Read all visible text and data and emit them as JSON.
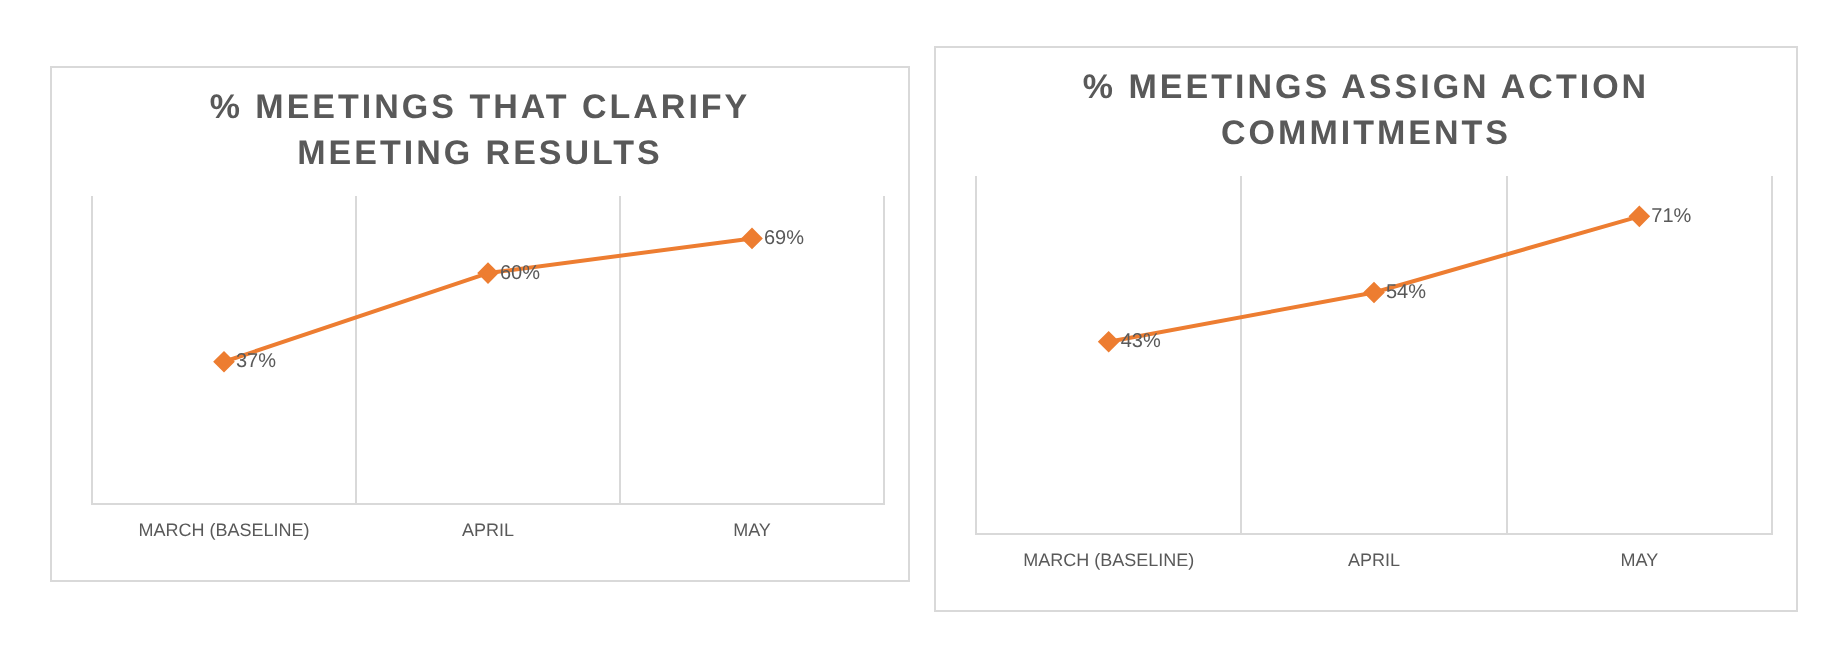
{
  "chart_data": [
    {
      "type": "line",
      "title": "% MEETINGS THAT CLARIFY MEETING RESULTS",
      "categories": [
        "MARCH (BASELINE)",
        "APRIL",
        "MAY"
      ],
      "values": [
        37,
        60,
        69
      ],
      "value_labels": [
        "37%",
        "60%",
        "69%"
      ],
      "color": "#ed7d31",
      "marker": "diamond",
      "grid": "x",
      "relative": false
    },
    {
      "type": "line",
      "title": "% MEETINGS ASSIGN ACTION COMMITMENTS",
      "categories": [
        "MARCH (BASELINE)",
        "APRIL",
        "MAY"
      ],
      "values": [
        43,
        54,
        71
      ],
      "value_labels": [
        "43%",
        "54%",
        "71%"
      ],
      "color": "#ed7d31",
      "marker": "diamond",
      "grid": "x",
      "relative": false
    }
  ]
}
